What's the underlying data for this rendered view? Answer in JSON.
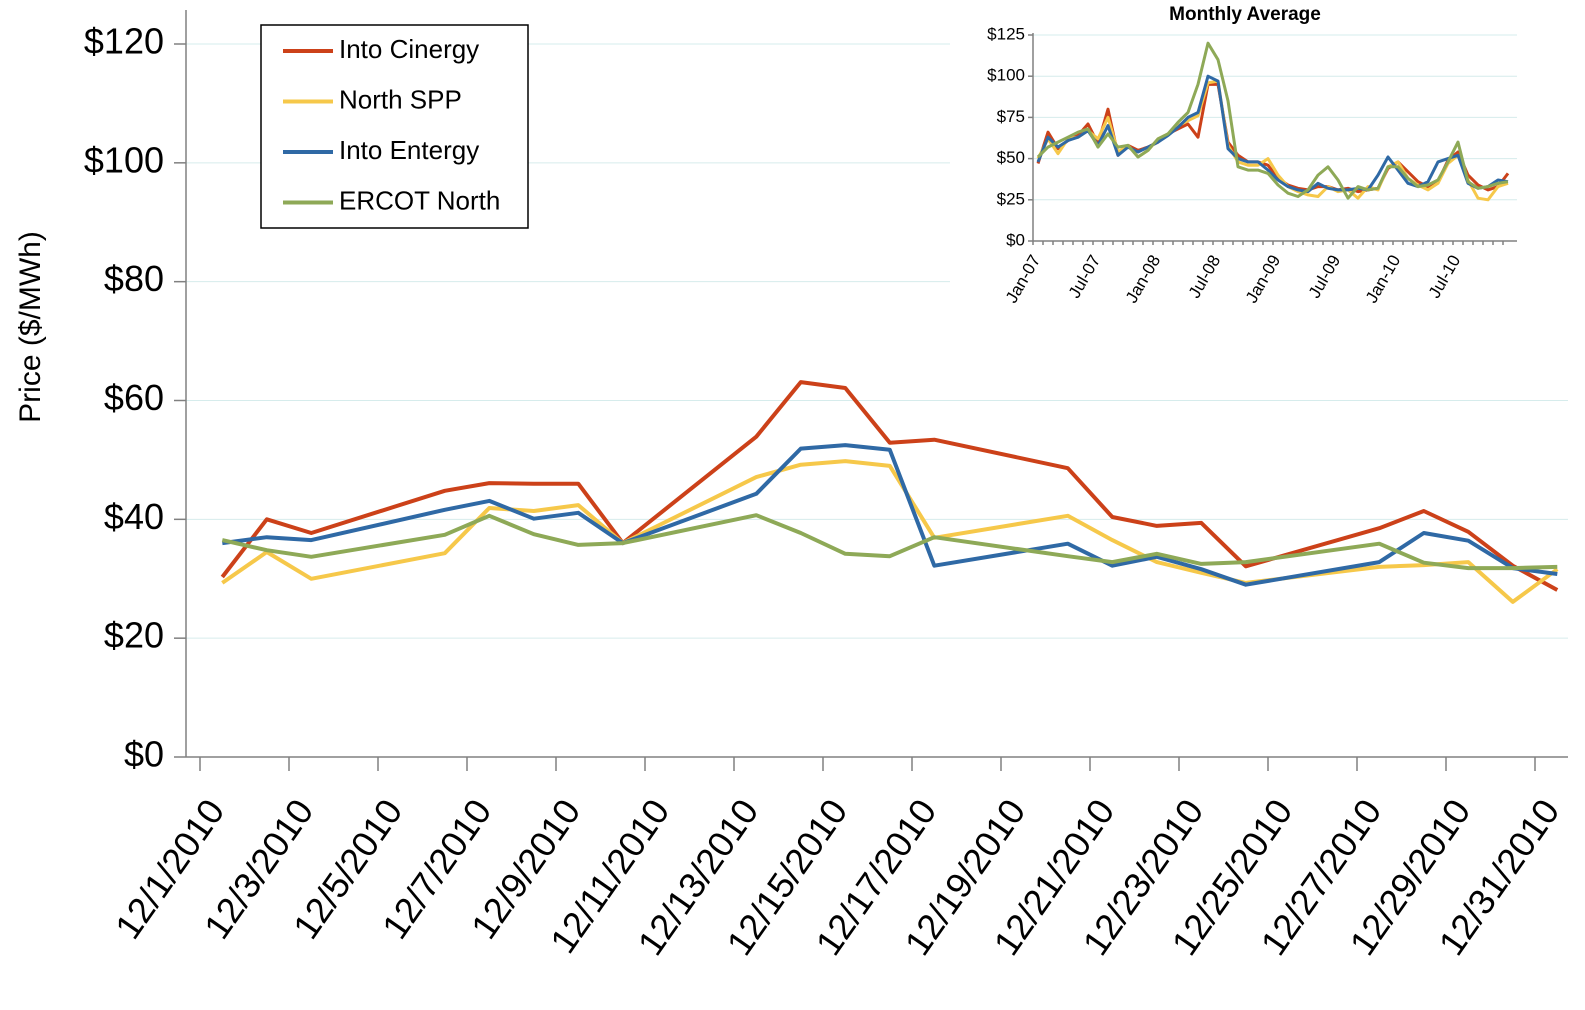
{
  "chart_data": [
    {
      "type": "line",
      "y_label": "Price ($/MWh)",
      "x": [
        "12/1/2010",
        "12/2/2010",
        "12/3/2010",
        "12/6/2010",
        "12/7/2010",
        "12/8/2010",
        "12/9/2010",
        "12/10/2010",
        "12/13/2010",
        "12/14/2010",
        "12/15/2010",
        "12/16/2010",
        "12/17/2010",
        "12/20/2010",
        "12/21/2010",
        "12/22/2010",
        "12/23/2010",
        "12/24/2010",
        "12/27/2010",
        "12/28/2010",
        "12/29/2010",
        "12/30/2010",
        "12/31/2010"
      ],
      "xlim": [
        "12/1/2010",
        "12/31/2010"
      ],
      "xticks": [
        "12/1/2010",
        "12/3/2010",
        "12/5/2010",
        "12/7/2010",
        "12/9/2010",
        "12/11/2010",
        "12/13/2010",
        "12/15/2010",
        "12/17/2010",
        "12/19/2010",
        "12/21/2010",
        "12/23/2010",
        "12/25/2010",
        "12/27/2010",
        "12/29/2010",
        "12/31/2010"
      ],
      "ylim": [
        0,
        120
      ],
      "yticks": [
        {
          "value": 0,
          "label": "$0"
        },
        {
          "value": 20,
          "label": "$20"
        },
        {
          "value": 40,
          "label": "$40"
        },
        {
          "value": 60,
          "label": "$60"
        },
        {
          "value": 80,
          "label": "$80"
        },
        {
          "value": 100,
          "label": "$100"
        },
        {
          "value": 120,
          "label": "$120"
        }
      ],
      "grid": true,
      "legend": "top-left",
      "series": [
        {
          "name": "Into Cinergy",
          "color": "#cc4119",
          "values": [
            30.3,
            40.0,
            37.7,
            44.8,
            46.1,
            46.0,
            46.0,
            36.0,
            53.9,
            63.1,
            62.1,
            52.9,
            53.4,
            48.6,
            40.4,
            38.9,
            39.4,
            32.1,
            38.5,
            41.4,
            37.9,
            32.2,
            28.1
          ]
        },
        {
          "name": "North SPP",
          "color": "#f6c84a",
          "values": [
            29.3,
            34.5,
            30.0,
            34.3,
            41.9,
            41.4,
            42.4,
            36.0,
            47.1,
            49.2,
            49.8,
            49.0,
            36.9,
            40.6,
            36.5,
            32.8,
            31.0,
            29.3,
            32.0,
            32.3,
            32.8,
            26.1,
            31.6
          ]
        },
        {
          "name": "Into Entergy",
          "color": "#2f69a5",
          "values": [
            36.0,
            37.0,
            36.5,
            41.6,
            43.1,
            40.1,
            41.1,
            36.0,
            44.3,
            51.9,
            52.5,
            51.7,
            32.2,
            35.9,
            32.2,
            33.7,
            31.6,
            29.0,
            32.8,
            37.7,
            36.4,
            31.8,
            30.8
          ]
        },
        {
          "name": "ERCOT North",
          "color": "#8ea957",
          "values": [
            36.5,
            34.8,
            33.7,
            37.4,
            40.6,
            37.5,
            35.7,
            36.0,
            40.7,
            37.7,
            34.2,
            33.8,
            37.0,
            33.8,
            32.8,
            34.2,
            32.5,
            32.8,
            35.9,
            32.7,
            31.8,
            31.8,
            32.0
          ]
        }
      ]
    },
    {
      "type": "line",
      "title": "Monthly Average",
      "categories": [
        "Jan-07",
        null,
        null,
        null,
        null,
        null,
        "Jul-07",
        null,
        null,
        null,
        null,
        null,
        "Jan-08",
        null,
        null,
        null,
        null,
        null,
        "Jul-08",
        null,
        null,
        null,
        null,
        null,
        "Jan-09",
        null,
        null,
        null,
        null,
        null,
        "Jul-09",
        null,
        null,
        null,
        null,
        null,
        "Jan-10",
        null,
        null,
        null,
        null,
        null,
        "Jul-10",
        null,
        null,
        null,
        null,
        null
      ],
      "ylim": [
        0,
        125
      ],
      "yticks": [
        {
          "value": 0,
          "label": "$0"
        },
        {
          "value": 25,
          "label": "$25"
        },
        {
          "value": 50,
          "label": "$50"
        },
        {
          "value": 75,
          "label": "$75"
        },
        {
          "value": 100,
          "label": "$100"
        },
        {
          "value": 125,
          "label": "$125"
        }
      ],
      "grid": true,
      "series": [
        {
          "name": "Into Cinergy",
          "color": "#cc4119",
          "values": [
            47,
            66,
            56,
            61,
            64,
            71,
            59,
            80,
            52,
            58,
            55,
            57,
            60,
            65,
            68,
            71,
            63,
            95,
            95,
            60,
            52,
            48,
            48,
            46,
            38,
            34,
            32,
            31,
            33,
            33,
            31,
            32,
            30,
            31,
            32,
            44,
            48,
            42,
            36,
            33,
            36,
            49,
            54,
            40,
            34,
            31,
            33,
            41
          ]
        },
        {
          "name": "North SPP",
          "color": "#f6c84a",
          "values": [
            50,
            62,
            53,
            62,
            63,
            67,
            62,
            75,
            54,
            58,
            51,
            55,
            62,
            65,
            70,
            73,
            76,
            96,
            97,
            58,
            48,
            46,
            46,
            50,
            40,
            33,
            30,
            28,
            27,
            33,
            30,
            31,
            26,
            33,
            31,
            45,
            48,
            38,
            34,
            31,
            35,
            47,
            52,
            37,
            26,
            25,
            33,
            35
          ]
        },
        {
          "name": "Into Entergy",
          "color": "#2f69a5",
          "values": [
            48,
            63,
            57,
            61,
            63,
            67,
            58,
            70,
            52,
            57,
            54,
            57,
            60,
            64,
            69,
            75,
            78,
            100,
            97,
            56,
            50,
            48,
            48,
            43,
            37,
            33,
            31,
            30,
            35,
            32,
            31,
            31,
            32,
            31,
            40,
            51,
            43,
            35,
            33,
            36,
            48,
            50,
            52,
            35,
            32,
            33,
            37,
            36
          ]
        },
        {
          "name": "ERCOT North",
          "color": "#8ea957",
          "values": [
            51,
            57,
            60,
            63,
            66,
            68,
            57,
            65,
            57,
            58,
            51,
            55,
            62,
            65,
            72,
            78,
            95,
            120,
            110,
            85,
            45,
            43,
            43,
            41,
            34,
            29,
            27,
            31,
            40,
            45,
            37,
            26,
            33,
            31,
            32,
            45,
            45,
            38,
            33,
            34,
            37,
            48,
            60,
            36,
            32,
            33,
            35,
            36
          ]
        }
      ]
    }
  ]
}
